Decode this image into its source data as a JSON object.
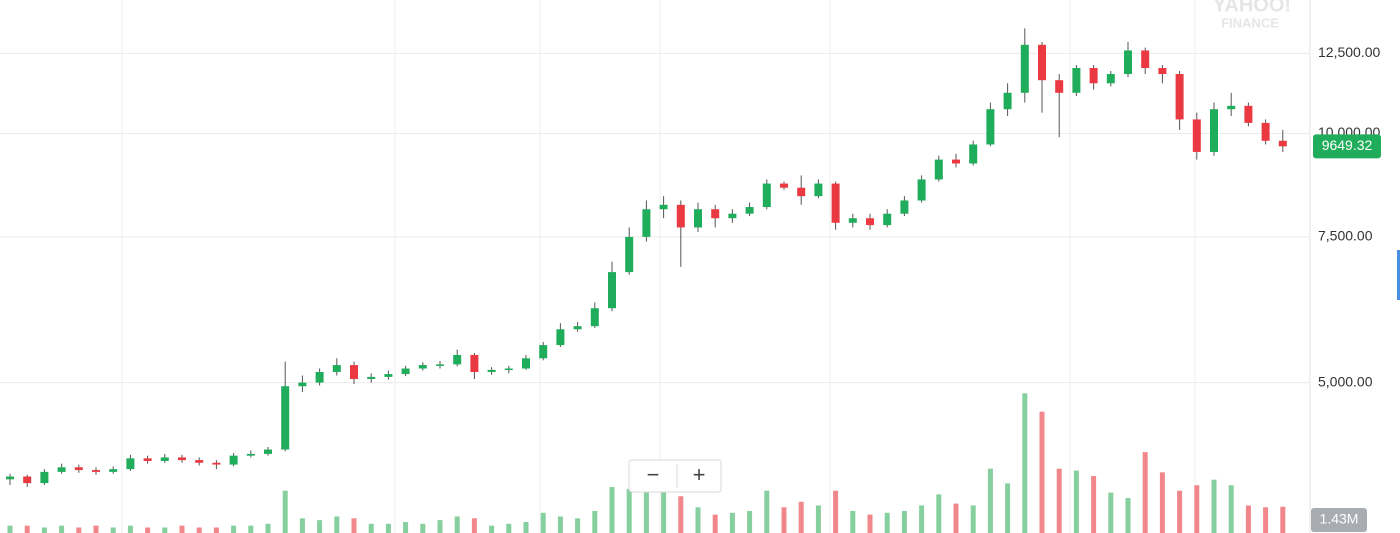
{
  "chart_data": {
    "type": "candlestick",
    "log_scale": true,
    "grid": true,
    "up_color": "#20ad5b",
    "down_color": "#ea3940",
    "volume_up_color": "#86cf9e",
    "volume_down_color": "#f2878b",
    "ylim": [
      3290,
      14500
    ],
    "yticks": [
      {
        "value": 5000,
        "label": "5,000.00"
      },
      {
        "value": 7500,
        "label": "7,500.00"
      },
      {
        "value": 10000,
        "label": "10,000.00"
      },
      {
        "value": 12500,
        "label": "12,500.00"
      }
    ],
    "volume_ylim": [
      0,
      29
    ],
    "open": [
      3820,
      3850,
      3780,
      3900,
      3950,
      3920,
      3900,
      3930,
      4050,
      4020,
      4060,
      4030,
      4000,
      3980,
      4080,
      4100,
      4150,
      4950,
      5000,
      5150,
      5250,
      5050,
      5080,
      5120,
      5200,
      5250,
      5260,
      5400,
      5150,
      5180,
      5200,
      5350,
      5550,
      5800,
      5850,
      6150,
      6800,
      7500,
      8100,
      8200,
      7700,
      8100,
      7900,
      8000,
      8150,
      8700,
      8600,
      8400,
      8700,
      7800,
      7900,
      7750,
      8000,
      8300,
      8800,
      9300,
      9200,
      9700,
      10700,
      11200,
      12800,
      11600,
      11200,
      12000,
      11500,
      11800,
      12600,
      12000,
      11800,
      10400,
      9500,
      10700,
      10800,
      10300,
      9800
    ],
    "high": [
      3880,
      3870,
      3930,
      3990,
      3980,
      3950,
      3960,
      4090,
      4080,
      4100,
      4090,
      4060,
      4030,
      4110,
      4140,
      4180,
      5300,
      5100,
      5200,
      5350,
      5300,
      5130,
      5170,
      5240,
      5290,
      5310,
      5480,
      5430,
      5220,
      5240,
      5400,
      5600,
      5900,
      5920,
      6250,
      7000,
      7700,
      8300,
      8400,
      8300,
      8250,
      8200,
      8100,
      8250,
      8800,
      8750,
      8900,
      8800,
      8750,
      8000,
      8000,
      8100,
      8400,
      8900,
      9400,
      9450,
      9800,
      10900,
      11500,
      13400,
      12900,
      11800,
      12100,
      12100,
      11900,
      12900,
      12700,
      12100,
      11900,
      10600,
      10900,
      11200,
      10900,
      10400,
      10100
    ],
    "low": [
      3760,
      3740,
      3760,
      3880,
      3890,
      3870,
      3880,
      3910,
      3990,
      4000,
      4000,
      3970,
      3930,
      3960,
      4060,
      4080,
      4130,
      4870,
      4960,
      5100,
      4980,
      5000,
      5040,
      5090,
      5170,
      5200,
      5230,
      5050,
      5110,
      5130,
      5180,
      5320,
      5520,
      5760,
      5820,
      6100,
      6750,
      7400,
      7900,
      6900,
      7600,
      7700,
      7800,
      7950,
      8100,
      8550,
      8200,
      8350,
      7650,
      7700,
      7650,
      7700,
      7950,
      8250,
      8750,
      9100,
      9150,
      9650,
      10500,
      10900,
      10600,
      9900,
      11100,
      11300,
      11400,
      11700,
      11800,
      11500,
      10100,
      9300,
      9400,
      10500,
      10200,
      9700,
      9500
    ],
    "close": [
      3850,
      3780,
      3900,
      3950,
      3920,
      3900,
      3930,
      4050,
      4020,
      4060,
      4030,
      4000,
      3980,
      4080,
      4100,
      4150,
      4950,
      5000,
      5150,
      5250,
      5050,
      5080,
      5120,
      5200,
      5250,
      5260,
      5400,
      5150,
      5180,
      5200,
      5350,
      5550,
      5800,
      5850,
      6150,
      6800,
      7500,
      8100,
      8200,
      7700,
      8100,
      7900,
      8000,
      8150,
      8700,
      8600,
      8400,
      8700,
      7800,
      7900,
      7750,
      8000,
      8300,
      8800,
      9300,
      9200,
      9700,
      10700,
      11200,
      12800,
      11600,
      11200,
      12000,
      11500,
      11800,
      12600,
      12000,
      11800,
      10400,
      9500,
      10700,
      10800,
      10300,
      9800,
      9649.32
    ],
    "volume": [
      0.4,
      0.4,
      0.3,
      0.4,
      0.3,
      0.4,
      0.3,
      0.4,
      0.3,
      0.3,
      0.4,
      0.3,
      0.3,
      0.4,
      0.4,
      0.5,
      2.3,
      0.8,
      0.7,
      0.9,
      0.8,
      0.5,
      0.5,
      0.6,
      0.5,
      0.7,
      0.9,
      0.8,
      0.4,
      0.5,
      0.6,
      1.1,
      0.9,
      0.8,
      1.2,
      2.5,
      2.4,
      2.5,
      2.2,
      2.0,
      1.4,
      1.0,
      1.1,
      1.2,
      2.3,
      1.4,
      1.7,
      1.5,
      2.3,
      1.2,
      1.0,
      1.1,
      1.2,
      1.5,
      2.1,
      1.6,
      1.5,
      3.5,
      2.7,
      7.6,
      6.6,
      3.5,
      3.4,
      3.1,
      2.2,
      1.9,
      4.4,
      3.3,
      2.3,
      2.6,
      2.9,
      2.6,
      1.5,
      1.4,
      1.43
    ],
    "last_close_label": "9649.32",
    "last_volume_label": "1.43M",
    "watermark": [
      "YAHOO!",
      "FINANCE"
    ],
    "zoom_buttons": [
      "−",
      "+"
    ]
  }
}
